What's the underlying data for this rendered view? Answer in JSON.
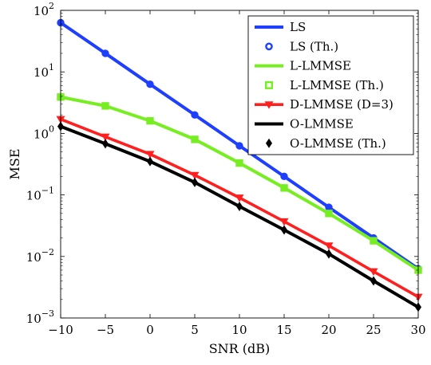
{
  "chart_data": {
    "type": "line",
    "xlabel": "SNR (dB)",
    "ylabel": "MSE",
    "xlim": [
      -10,
      30
    ],
    "ylim": [
      0.001,
      100
    ],
    "yscale": "log",
    "grid": false,
    "legend_position": "top-right",
    "x_ticks": [
      -10,
      -5,
      0,
      5,
      10,
      15,
      20,
      25,
      30
    ],
    "x_tick_labels": [
      "−10",
      "−5",
      "0",
      "5",
      "10",
      "15",
      "20",
      "25",
      "30"
    ],
    "y_ticks": [
      {
        "value": 0.001,
        "base": "10",
        "exp": "−3"
      },
      {
        "value": 0.01,
        "base": "10",
        "exp": "−2"
      },
      {
        "value": 0.1,
        "base": "10",
        "exp": "−1"
      },
      {
        "value": 1,
        "base": "10",
        "exp": "0"
      },
      {
        "value": 10,
        "base": "10",
        "exp": "1"
      },
      {
        "value": 100,
        "base": "10",
        "exp": "2"
      }
    ],
    "x": [
      -10,
      -5,
      0,
      5,
      10,
      15,
      20,
      25,
      30
    ],
    "series": [
      {
        "name": "LS",
        "kind": "line",
        "color": "#1f3fff",
        "values": [
          63,
          20,
          6.3,
          2.0,
          0.63,
          0.2,
          0.063,
          0.02,
          0.0063
        ]
      },
      {
        "name": "LS (Th.)",
        "kind": "marker",
        "marker": "circle",
        "color": "#1f3fff",
        "values": [
          63,
          20,
          6.3,
          2.0,
          0.63,
          0.2,
          0.063,
          0.02,
          0.0063
        ]
      },
      {
        "name": "L-LMMSE",
        "kind": "line",
        "color": "#77ee22",
        "values": [
          3.9,
          2.8,
          1.6,
          0.8,
          0.33,
          0.13,
          0.05,
          0.018,
          0.006
        ]
      },
      {
        "name": "L-LMMSE (Th.)",
        "kind": "marker",
        "marker": "square",
        "color": "#77ee22",
        "values": [
          3.9,
          2.8,
          1.6,
          0.8,
          0.33,
          0.13,
          0.05,
          0.018,
          0.006
        ]
      },
      {
        "name": "D-LMMSE (D=3)",
        "kind": "line-marker",
        "marker": "triangle-down",
        "color": "#ff1f1f",
        "values": [
          1.7,
          0.88,
          0.46,
          0.21,
          0.09,
          0.037,
          0.015,
          0.0057,
          0.0022
        ]
      },
      {
        "name": "O-LMMSE",
        "kind": "line",
        "color": "#000000",
        "values": [
          1.3,
          0.68,
          0.35,
          0.16,
          0.065,
          0.027,
          0.011,
          0.004,
          0.0015
        ]
      },
      {
        "name": "O-LMMSE (Th.)",
        "kind": "marker",
        "marker": "diamond",
        "color": "#000000",
        "values": [
          1.3,
          0.68,
          0.35,
          0.16,
          0.065,
          0.027,
          0.011,
          0.004,
          0.0015
        ]
      }
    ]
  }
}
